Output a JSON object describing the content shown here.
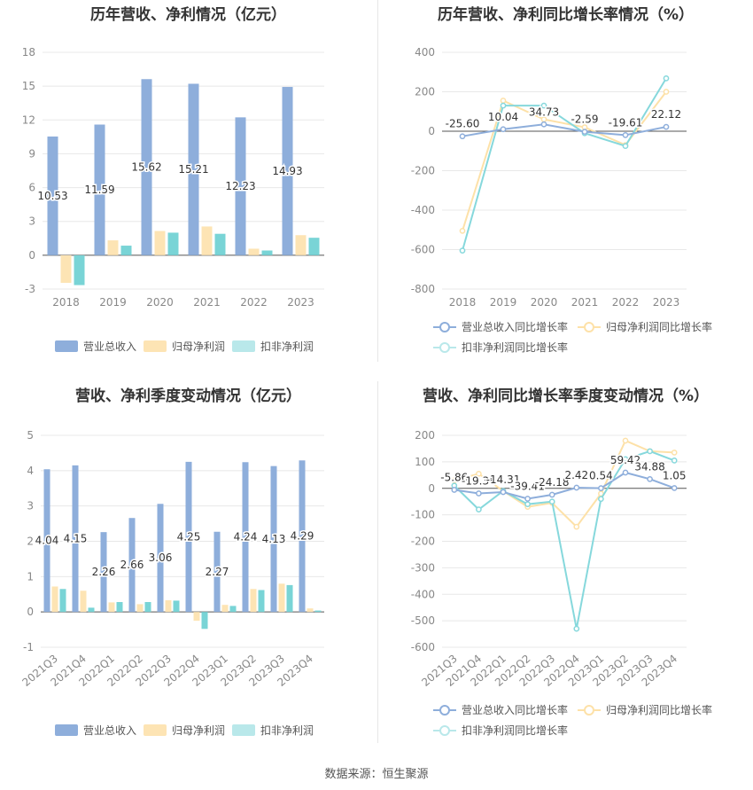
{
  "colors": {
    "revenue": "#8eaedb",
    "parent_profit": "#fde4b4",
    "deducted_profit": "#79d4d6",
    "revenue_line": "#8eaedb",
    "parent_line": "#fde1a8",
    "deducted_line": "#86d8dc"
  },
  "source": "数据来源：恒生聚源",
  "chart_data": [
    {
      "id": "annual-bars",
      "type": "bar",
      "title": "历年营收、净利情况（亿元）",
      "categories": [
        "2018",
        "2019",
        "2020",
        "2021",
        "2022",
        "2023"
      ],
      "ylim": [
        -3,
        18
      ],
      "yticks": [
        "-3",
        "0",
        "3",
        "6",
        "9",
        "12",
        "15",
        "18"
      ],
      "yticks_values": [
        -3,
        0,
        3,
        6,
        9,
        12,
        15,
        18
      ],
      "series": [
        {
          "name": "营业总收入",
          "values": [
            10.53,
            11.59,
            15.62,
            15.21,
            12.23,
            14.93
          ],
          "labels": [
            "10.53",
            "11.59",
            "15.62",
            "15.21",
            "12.23",
            "14.93"
          ]
        },
        {
          "name": "归母净利润",
          "values": [
            -2.45,
            1.32,
            2.15,
            2.55,
            0.58,
            1.78
          ]
        },
        {
          "name": "扣非净利润",
          "values": [
            -2.65,
            0.85,
            2.0,
            1.9,
            0.42,
            1.55
          ]
        }
      ],
      "legend": "bottom"
    },
    {
      "id": "annual-growth",
      "type": "line",
      "title": "历年营收、净利同比增长率情况（%）",
      "categories": [
        "2018",
        "2019",
        "2020",
        "2021",
        "2022",
        "2023"
      ],
      "ylim": [
        -800,
        400
      ],
      "yticks": [
        "-800",
        "-600",
        "-400",
        "-200",
        "0",
        "200",
        "400"
      ],
      "yticks_values": [
        -800,
        -600,
        -400,
        -200,
        0,
        200,
        400
      ],
      "series": [
        {
          "name": "营业总收入同比增长率",
          "values": [
            -25.6,
            10.04,
            34.73,
            -2.59,
            -19.61,
            22.12
          ],
          "labels": [
            "-25.60",
            "10.04",
            "34.73",
            "-2.59",
            "-19.61",
            "22.12"
          ]
        },
        {
          "name": "归母净利润同比增长率",
          "values": [
            -505,
            155,
            60,
            20,
            -70,
            200
          ]
        },
        {
          "name": "扣非净利润同比增长率",
          "values": [
            -605,
            130,
            130,
            -10,
            -75,
            268
          ]
        }
      ],
      "legend": "bottom"
    },
    {
      "id": "quarterly-bars",
      "type": "bar",
      "title": "营收、净利季度变动情况（亿元）",
      "categories": [
        "2021Q3",
        "2021Q4",
        "2022Q1",
        "2022Q2",
        "2022Q3",
        "2022Q4",
        "2023Q1",
        "2023Q2",
        "2023Q3",
        "2023Q4"
      ],
      "ylim": [
        -1,
        5
      ],
      "yticks": [
        "-1",
        "0",
        "1",
        "2",
        "3",
        "4",
        "5"
      ],
      "yticks_values": [
        -1,
        0,
        1,
        2,
        3,
        4,
        5
      ],
      "series": [
        {
          "name": "营业总收入",
          "values": [
            4.04,
            4.15,
            2.26,
            2.66,
            3.06,
            4.25,
            2.27,
            4.24,
            4.13,
            4.29
          ],
          "labels": [
            "4.04",
            "4.15",
            "2.26",
            "2.66",
            "3.06",
            "4.25",
            "2.27",
            "4.24",
            "4.13",
            "4.29"
          ]
        },
        {
          "name": "归母净利润",
          "values": [
            0.72,
            0.6,
            0.27,
            0.22,
            0.33,
            -0.25,
            0.2,
            0.65,
            0.8,
            0.1
          ]
        },
        {
          "name": "扣非净利润",
          "values": [
            0.65,
            0.12,
            0.28,
            0.28,
            0.32,
            -0.48,
            0.17,
            0.62,
            0.76,
            0.04
          ]
        }
      ],
      "legend": "bottom"
    },
    {
      "id": "quarterly-growth",
      "type": "line",
      "title": "营收、净利同比增长率季度变动情况（%）",
      "categories": [
        "2021Q3",
        "2021Q4",
        "2022Q1",
        "2022Q2",
        "2022Q3",
        "2022Q4",
        "2023Q1",
        "2023Q2",
        "2023Q3",
        "2023Q4"
      ],
      "ylim": [
        -600,
        200
      ],
      "yticks": [
        "-600",
        "-500",
        "-400",
        "-300",
        "-200",
        "-100",
        "0",
        "100",
        "200"
      ],
      "yticks_values": [
        -600,
        -500,
        -400,
        -300,
        -200,
        -100,
        0,
        100,
        200
      ],
      "series": [
        {
          "name": "营业总收入同比增长率",
          "values": [
            -5.86,
            -19.36,
            -14.31,
            -39.41,
            -24.18,
            2.42,
            0.54,
            59.42,
            34.88,
            1.05
          ],
          "labels": [
            "-5.86",
            "-19.36",
            "-14.31",
            "-39.41",
            "-24.18",
            "2.42",
            "0.54",
            "59.42",
            "34.88",
            "1.05"
          ]
        },
        {
          "name": "归母净利润同比增长率",
          "values": [
            30,
            55,
            -10,
            -70,
            -55,
            -145,
            -20,
            180,
            140,
            135
          ]
        },
        {
          "name": "扣非净利润同比增长率",
          "values": [
            10,
            -80,
            -10,
            -60,
            -50,
            -530,
            -40,
            110,
            140,
            105
          ]
        }
      ],
      "legend": "bottom"
    }
  ]
}
